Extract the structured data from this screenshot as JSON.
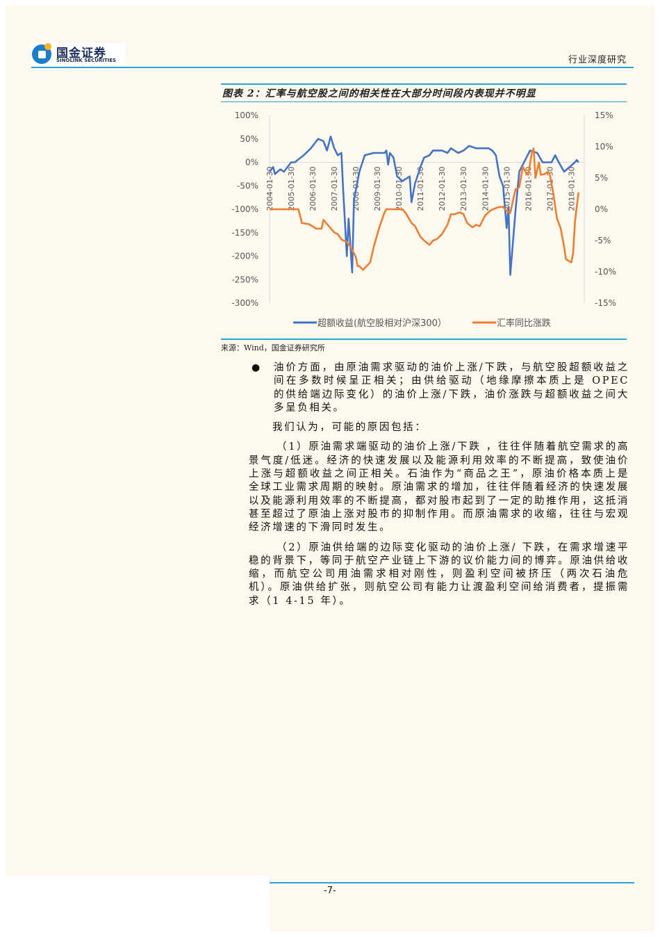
{
  "header": {
    "logo_cn": "国金证券",
    "logo_en": "SINOLINK SECURITIES",
    "section": "行业深度研究"
  },
  "figure": {
    "title": "图表 2：汇率与航空股之间的相关性在大部分时间段内表现并不明显",
    "source": "来源：Wind，国金证券研究所"
  },
  "chart_data": {
    "type": "line",
    "title": "",
    "x_tick_labels": [
      "2004-01-30",
      "2005-01-30",
      "2006-01-30",
      "2007-01-30",
      "2008-01-30",
      "2009-01-30",
      "2010-01-30",
      "2011-01-30",
      "2012-01-30",
      "2013-01-30",
      "2014-01-30",
      "2015-01-30",
      "2016-01-30",
      "2017-01-30",
      "2018-01-30"
    ],
    "y_left": {
      "ticks": [
        "100%",
        "50%",
        "0%",
        "-50%",
        "-100%",
        "-150%",
        "-200%",
        "-250%",
        "-300%"
      ],
      "range": [
        -300,
        100
      ]
    },
    "y_right": {
      "ticks": [
        "15%",
        "10%",
        "5%",
        "0%",
        "-5%",
        "-10%",
        "-15%"
      ],
      "range": [
        -15,
        15
      ]
    },
    "grid": false,
    "legend_position": "bottom",
    "series": [
      {
        "name": "超额收益(航空股相对沪深300）",
        "axis": "left",
        "color": "#4472c4",
        "points": [
          [
            "2004-01",
            -20
          ],
          [
            "2004-03",
            -10
          ],
          [
            "2004-04",
            -25
          ],
          [
            "2004-07",
            -15
          ],
          [
            "2004-09",
            -20
          ],
          [
            "2004-11",
            -10
          ],
          [
            "2005-01",
            0
          ],
          [
            "2005-03",
            0
          ],
          [
            "2005-08",
            15
          ],
          [
            "2005-12",
            30
          ],
          [
            "2006-04",
            50
          ],
          [
            "2006-07",
            45
          ],
          [
            "2006-09",
            25
          ],
          [
            "2006-11",
            55
          ],
          [
            "2007-01",
            30
          ],
          [
            "2007-03",
            15
          ],
          [
            "2007-05",
            20
          ],
          [
            "2007-06",
            -60
          ],
          [
            "2007-08",
            -200
          ],
          [
            "2007-09",
            -120
          ],
          [
            "2007-11",
            -235
          ],
          [
            "2007-12",
            -80
          ],
          [
            "2008-03",
            -20
          ],
          [
            "2008-06",
            15
          ],
          [
            "2008-11",
            20
          ],
          [
            "2009-05",
            20
          ],
          [
            "2009-06",
            25
          ],
          [
            "2009-07",
            -5
          ],
          [
            "2009-08",
            20
          ],
          [
            "2009-10",
            10
          ],
          [
            "2009-12",
            -30
          ],
          [
            "2010-03",
            -40
          ],
          [
            "2010-07",
            -30
          ],
          [
            "2010-08",
            -85
          ],
          [
            "2010-10",
            -45
          ],
          [
            "2011-01",
            -10
          ],
          [
            "2011-03",
            10
          ],
          [
            "2011-06",
            15
          ],
          [
            "2011-08",
            25
          ],
          [
            "2012-01",
            25
          ],
          [
            "2012-04",
            20
          ],
          [
            "2012-06",
            30
          ],
          [
            "2012-10",
            20
          ],
          [
            "2013-01",
            25
          ],
          [
            "2013-04",
            35
          ],
          [
            "2013-08",
            30
          ],
          [
            "2014-03",
            30
          ],
          [
            "2014-05",
            25
          ],
          [
            "2014-07",
            15
          ],
          [
            "2014-09",
            -30
          ],
          [
            "2014-11",
            -50
          ],
          [
            "2015-01",
            -140
          ],
          [
            "2015-02",
            -95
          ],
          [
            "2015-03",
            -240
          ],
          [
            "2015-06",
            -100
          ],
          [
            "2015-08",
            -20
          ],
          [
            "2015-12",
            10
          ],
          [
            "2016-02",
            25
          ],
          [
            "2016-06",
            20
          ],
          [
            "2016-09",
            0
          ],
          [
            "2017-02",
            0
          ],
          [
            "2017-04",
            15
          ],
          [
            "2017-06",
            0
          ],
          [
            "2017-09",
            -20
          ],
          [
            "2017-12",
            -10
          ],
          [
            "2018-03",
            0
          ],
          [
            "2018-04",
            5
          ],
          [
            "2018-05",
            0
          ]
        ]
      },
      {
        "name": "汇率同比涨跌",
        "axis": "right",
        "color": "#ed7d31",
        "points": [
          [
            "2004-01",
            0
          ],
          [
            "2005-05",
            0
          ],
          [
            "2005-06",
            -1
          ],
          [
            "2005-07",
            -2.2
          ],
          [
            "2005-11",
            -2.4
          ],
          [
            "2006-03",
            -3.1
          ],
          [
            "2006-06",
            -3.1
          ],
          [
            "2006-07",
            -1.7
          ],
          [
            "2007-01",
            -3.7
          ],
          [
            "2007-03",
            -4
          ],
          [
            "2007-05",
            -4.8
          ],
          [
            "2007-06",
            -5
          ],
          [
            "2007-08",
            -5.2
          ],
          [
            "2007-10",
            -6
          ],
          [
            "2008-01",
            -7.6
          ],
          [
            "2008-02",
            -9.1
          ],
          [
            "2008-03",
            -9.1
          ],
          [
            "2008-05",
            -9.7
          ],
          [
            "2008-06",
            -9.4
          ],
          [
            "2008-09",
            -8.5
          ],
          [
            "2008-11",
            -6
          ],
          [
            "2009-02",
            -3
          ],
          [
            "2009-05",
            -0.5
          ],
          [
            "2009-06",
            0
          ],
          [
            "2010-03",
            0
          ],
          [
            "2010-05",
            -0.7
          ],
          [
            "2010-08",
            -2.2
          ],
          [
            "2010-10",
            -2.7
          ],
          [
            "2011-01",
            -4.4
          ],
          [
            "2011-03",
            -5
          ],
          [
            "2011-06",
            -5.7
          ],
          [
            "2011-08",
            -5
          ],
          [
            "2011-10",
            -4.8
          ],
          [
            "2012-01",
            -4
          ],
          [
            "2012-04",
            -2.5
          ],
          [
            "2012-06",
            -0.8
          ],
          [
            "2012-08",
            -0.8
          ],
          [
            "2012-11",
            -0.5
          ],
          [
            "2013-01",
            -0.8
          ],
          [
            "2013-03",
            -2.2
          ],
          [
            "2013-06",
            -2.9
          ],
          [
            "2013-08",
            -2.5
          ],
          [
            "2013-10",
            -2.7
          ],
          [
            "2014-01",
            -1
          ],
          [
            "2014-04",
            -0.2
          ],
          [
            "2014-08",
            0.3
          ],
          [
            "2014-11",
            0.4
          ],
          [
            "2015-01",
            -0.3
          ],
          [
            "2015-03",
            -0.6
          ],
          [
            "2015-05",
            2
          ],
          [
            "2015-06",
            3.2
          ],
          [
            "2015-08",
            3.5
          ],
          [
            "2015-10",
            6.8
          ],
          [
            "2015-12",
            5.7
          ],
          [
            "2016-01",
            5.5
          ],
          [
            "2016-03",
            9.0
          ],
          [
            "2016-04",
            9.7
          ],
          [
            "2016-05",
            5.0
          ],
          [
            "2016-07",
            7.5
          ],
          [
            "2016-08",
            5.5
          ],
          [
            "2016-10",
            5.6
          ],
          [
            "2016-12",
            6.0
          ],
          [
            "2017-01",
            5.5
          ],
          [
            "2017-03",
            2.5
          ],
          [
            "2017-05",
            -1.5
          ],
          [
            "2017-07",
            -3
          ],
          [
            "2017-09",
            -6
          ],
          [
            "2017-10",
            -8
          ],
          [
            "2018-01",
            -8.5
          ],
          [
            "2018-02",
            -7
          ],
          [
            "2018-03",
            -2
          ],
          [
            "2018-05",
            2.7
          ]
        ]
      }
    ]
  },
  "body": {
    "bullet": "●",
    "p1": "油价方面，由原油需求驱动的油价上涨/下跌，与航空股超额收益之间在多数时候呈正相关；由供给驱动（地缘摩擦本质上是 OPEC 的供给端边际变化）的油价上涨/下跌，油价涨跌与超额收益之间大多呈负相关。",
    "p2": "我们认为，可能的原因包括：",
    "p3": "（1）原油需求端驱动的油价上涨/下跌 ，往往伴随着航空需求的高景气度/低迷。经济的快速发展以及能源利用效率的不断提高，致使油价上涨与超额收益之间正相关。石油作为“商品之王”，原油价格本质上是全球工业需求周期的映射。原油需求的增加，往往伴随着经济的快速发展以及能源利用效率的不断提高，都对股市起到了一定的助推作用，这抵消甚至超过了原油上涨对股市的抑制作用。而原油需求的收缩，往往与宏观经济增速的下滑同时发生。",
    "p4": "（2）原油供给端的边际变化驱动的油价上涨/ 下跌，在需求增速平稳的背景下，等同于航空产业链上下游的议价能力间的博弈。原油供给收缩，而航空公司用油需求相对刚性，则盈利空间被挤压（两次石油危机）。原油供给扩张，则航空公司有能力让渡盈利空间给消费者，提振需求（1 4-15 年）。"
  },
  "footer": {
    "page": "-7-"
  }
}
